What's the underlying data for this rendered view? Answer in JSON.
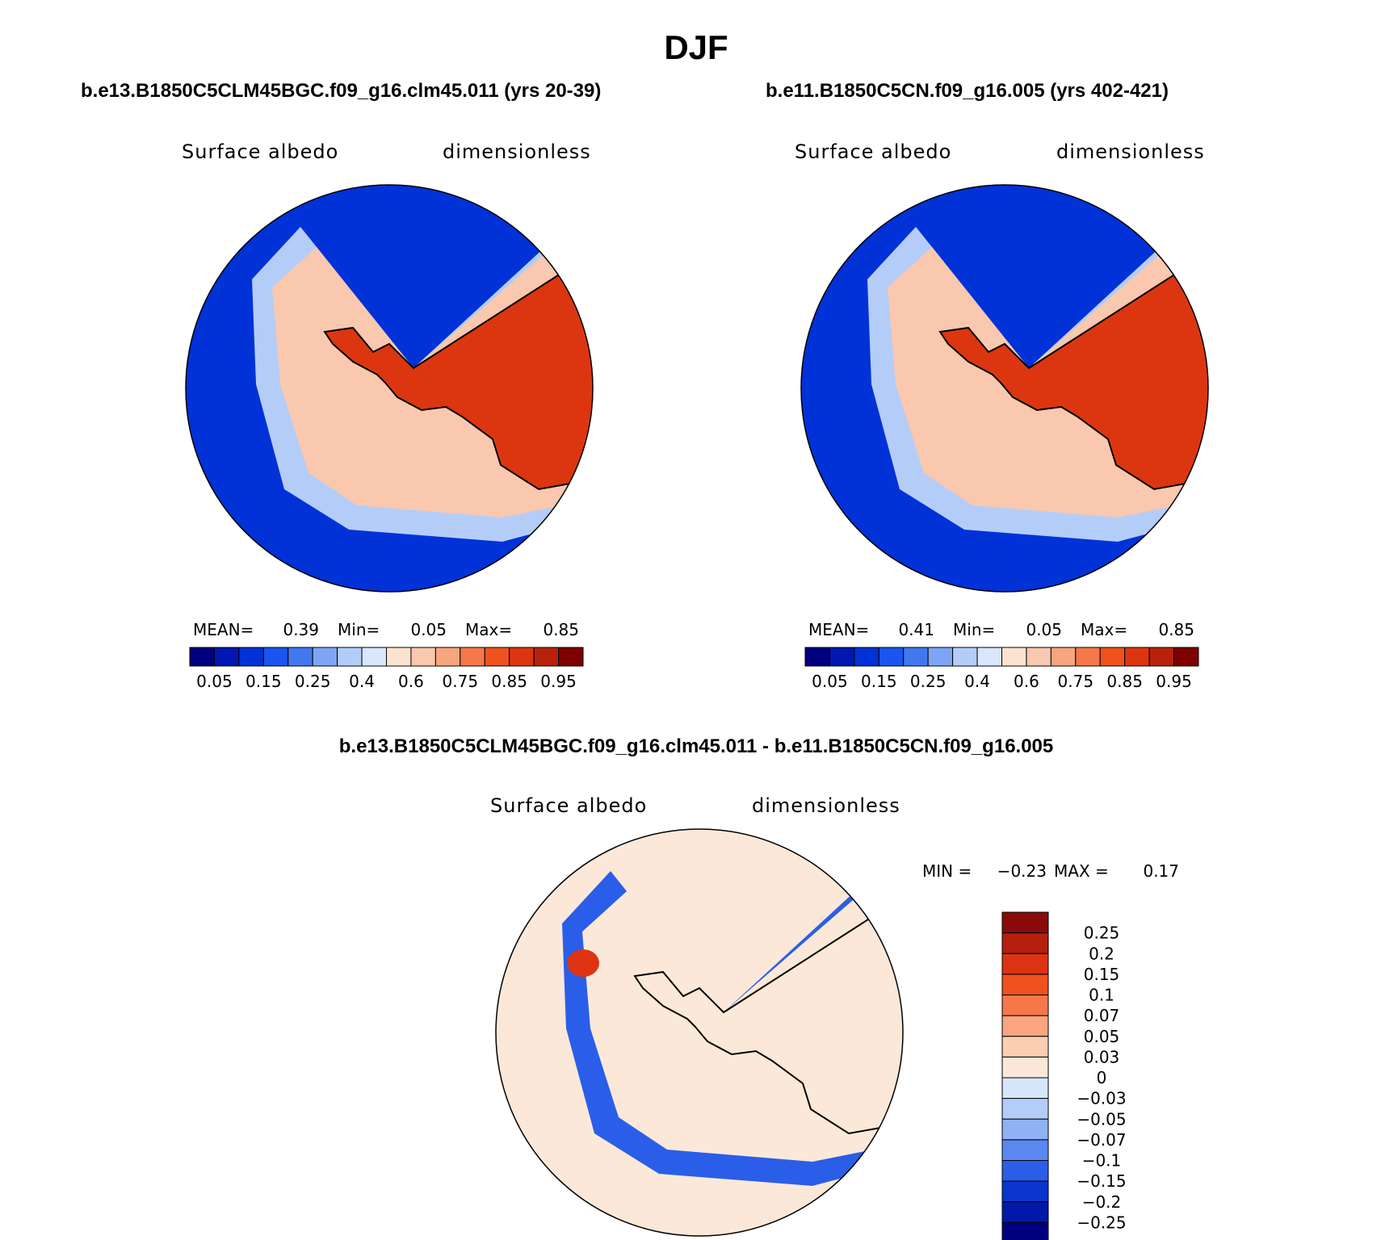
{
  "figure_title": "DJF",
  "chart_data": [
    {
      "type": "heatmap",
      "projection": "south-polar-stereographic",
      "title": "b.e13.B1850C5CLM45BGC.f09_g16.clm45.011 (yrs 20-39)",
      "left_string": "Surface albedo",
      "right_string": "dimensionless",
      "stats": {
        "mean_label": "MEAN=",
        "mean": "0.39",
        "min_label": "Min=",
        "min": "0.05",
        "max_label": "Max=",
        "max": "0.85"
      },
      "levels": [
        0.05,
        0.1,
        0.15,
        0.2,
        0.25,
        0.3,
        0.4,
        0.5,
        0.6,
        0.7,
        0.75,
        0.8,
        0.85,
        0.9,
        0.95
      ],
      "tick_labels": [
        "0.05",
        "0.15",
        "0.25",
        "0.4",
        "0.6",
        "0.75",
        "0.85",
        "0.95"
      ],
      "colors": [
        "#00007f",
        "#0018b0",
        "#0032d8",
        "#1a55ef",
        "#4178f0",
        "#7ea5f5",
        "#b4cdf8",
        "#d8e7fb",
        "#fbe3d0",
        "#f9c8ae",
        "#f6a57f",
        "#f5774a",
        "#f0521f",
        "#dc3610",
        "#b8220a",
        "#7e0000"
      ],
      "legend_position": "bottom",
      "regions": {
        "open_ocean": 0.1,
        "sea_ice_outer": 0.35,
        "sea_ice_inner": 0.6,
        "ice_sheet": 0.85
      }
    },
    {
      "type": "heatmap",
      "projection": "south-polar-stereographic",
      "title": "b.e11.B1850C5CN.f09_g16.005 (yrs 402-421)",
      "left_string": "Surface albedo",
      "right_string": "dimensionless",
      "stats": {
        "mean_label": "MEAN=",
        "mean": "0.41",
        "min_label": "Min=",
        "min": "0.05",
        "max_label": "Max=",
        "max": "0.85"
      },
      "levels": [
        0.05,
        0.1,
        0.15,
        0.2,
        0.25,
        0.3,
        0.4,
        0.5,
        0.6,
        0.7,
        0.75,
        0.8,
        0.85,
        0.9,
        0.95
      ],
      "tick_labels": [
        "0.05",
        "0.15",
        "0.25",
        "0.4",
        "0.6",
        "0.75",
        "0.85",
        "0.95"
      ],
      "colors": [
        "#00007f",
        "#0018b0",
        "#0032d8",
        "#1a55ef",
        "#4178f0",
        "#7ea5f5",
        "#b4cdf8",
        "#d8e7fb",
        "#fbe3d0",
        "#f9c8ae",
        "#f6a57f",
        "#f5774a",
        "#f0521f",
        "#dc3610",
        "#b8220a",
        "#7e0000"
      ],
      "legend_position": "bottom",
      "regions": {
        "open_ocean": 0.1,
        "sea_ice_outer": 0.35,
        "sea_ice_inner": 0.65,
        "ice_sheet": 0.85
      }
    },
    {
      "type": "heatmap",
      "projection": "south-polar-stereographic",
      "title": "b.e13.B1850C5CLM45BGC.f09_g16.clm45.011 - b.e11.B1850C5CN.f09_g16.005",
      "left_string": "Surface albedo",
      "right_string": "dimensionless",
      "stats": {
        "min_label": "MIN =",
        "min": "−0.23",
        "max_label": "MAX =",
        "max": "0.17"
      },
      "levels": [
        0.25,
        0.2,
        0.15,
        0.1,
        0.07,
        0.05,
        0.03,
        0,
        -0.03,
        -0.05,
        -0.07,
        -0.1,
        -0.15,
        -0.2,
        -0.25
      ],
      "tick_labels": [
        "0.25",
        "0.2",
        "0.15",
        "0.1",
        "0.07",
        "0.05",
        "0.03",
        "0",
        "−0.03",
        "−0.05",
        "−0.07",
        "−0.1",
        "−0.15",
        "−0.2",
        "−0.25"
      ],
      "colors": [
        "#8b0a0a",
        "#b5200c",
        "#dc3412",
        "#f0521f",
        "#f5774a",
        "#f9a57f",
        "#fbcdb1",
        "#fbe8d8",
        "#d6e6fb",
        "#b4cdf8",
        "#8fb2f5",
        "#5a88f0",
        "#2a5ee8",
        "#0a36cf",
        "#0019a8",
        "#00007f"
      ],
      "legend_position": "right",
      "regions": {
        "background": 0.0,
        "antarctica": 0.01,
        "negative_belt": -0.12,
        "peninsula_max": 0.17
      }
    }
  ]
}
